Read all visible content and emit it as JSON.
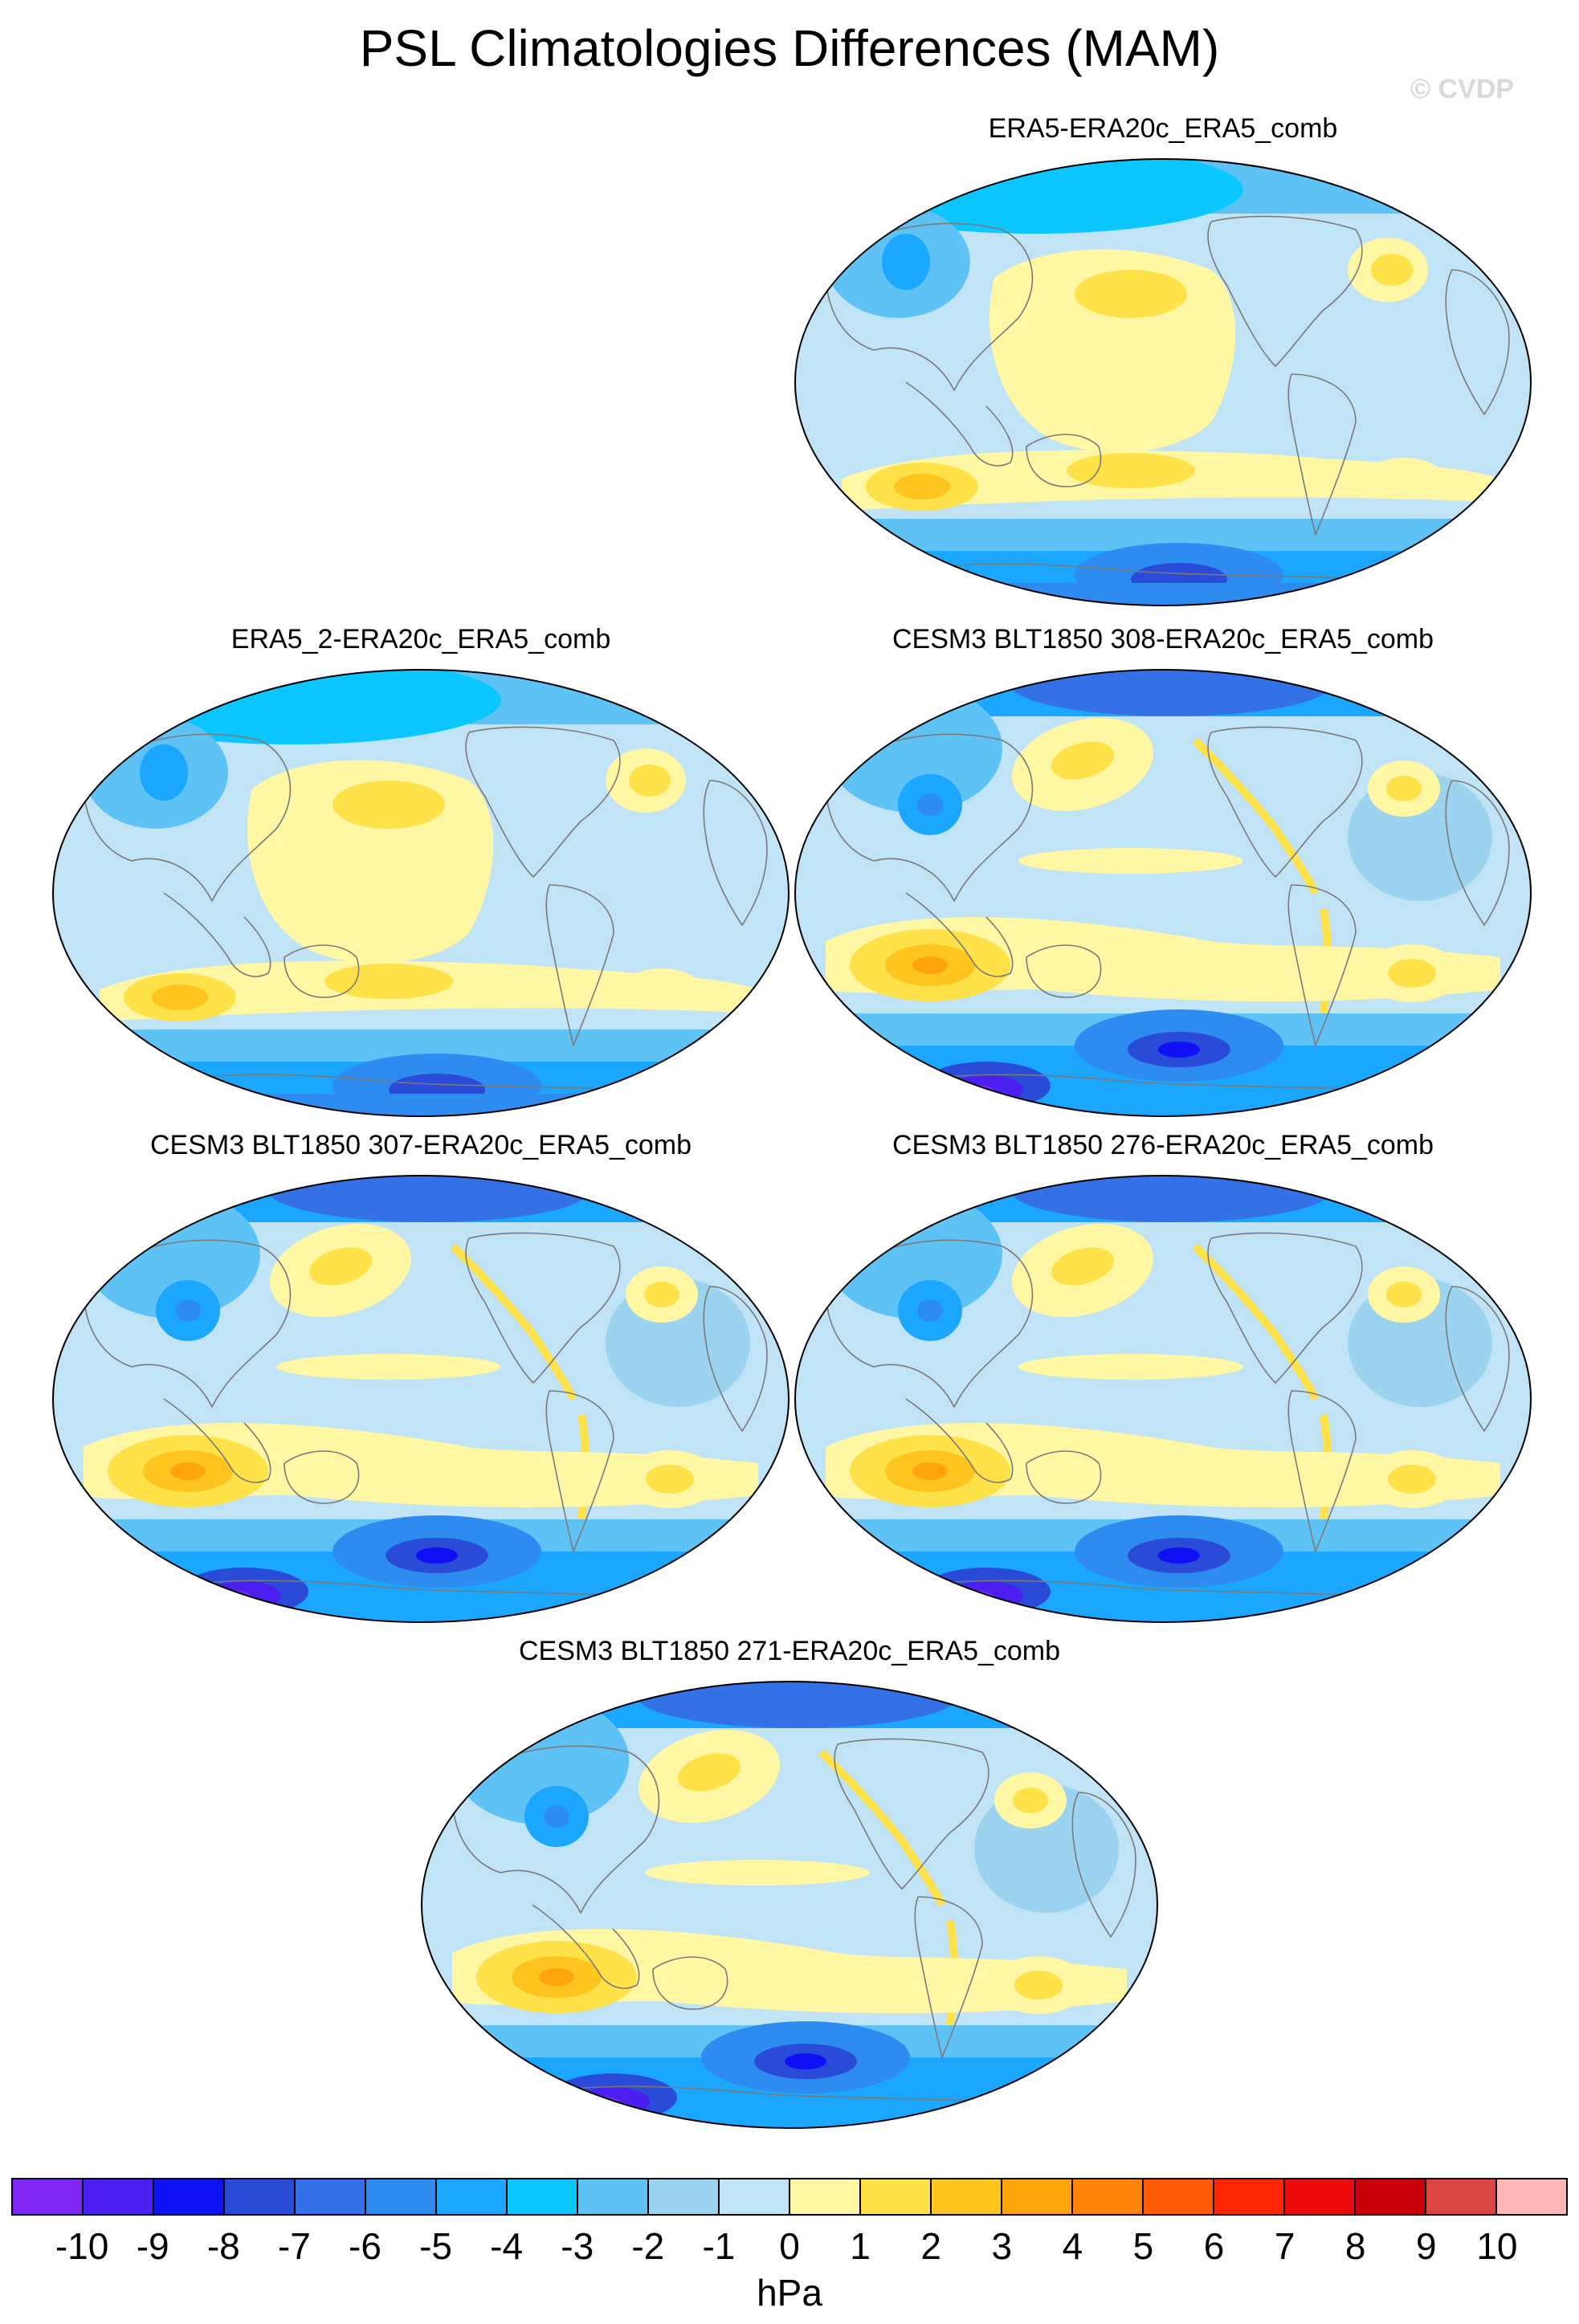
{
  "title": "PSL Climatologies Differences (MAM)",
  "watermark": "© CVDP",
  "panels": [
    {
      "title": "ERA5-ERA20c_ERA5_comb",
      "variant": "era5"
    },
    {
      "title": "ERA5_2-ERA20c_ERA5_comb",
      "variant": "era5"
    },
    {
      "title": "CESM3 BLT1850 308-ERA20c_ERA5_comb",
      "variant": "cesm"
    },
    {
      "title": "CESM3 BLT1850 307-ERA20c_ERA5_comb",
      "variant": "cesm"
    },
    {
      "title": "CESM3 BLT1850 276-ERA20c_ERA5_comb",
      "variant": "cesm"
    },
    {
      "title": "CESM3 BLT1850 271-ERA20c_ERA5_comb",
      "variant": "cesm"
    }
  ],
  "colorbar": {
    "units": "hPa",
    "tick_labels": [
      "-10",
      "-9",
      "-8",
      "-7",
      "-6",
      "-5",
      "-4",
      "-3",
      "-2",
      "-1",
      "0",
      "1",
      "2",
      "3",
      "4",
      "5",
      "6",
      "7",
      "8",
      "9",
      "10"
    ],
    "colors": [
      "#7e26f2",
      "#4a1ff0",
      "#1010f5",
      "#2a4ad8",
      "#3470e6",
      "#2e8cf0",
      "#1ba6ff",
      "#0bc6ff",
      "#5ec3f4",
      "#9cd3ef",
      "#c1e3f6",
      "#fff7a4",
      "#ffe24a",
      "#ffc51e",
      "#ffa40c",
      "#ff840a",
      "#ff5a05",
      "#ff2605",
      "#ee0a0a",
      "#c9000a",
      "#dd4444",
      "#ffb6b8"
    ]
  }
}
